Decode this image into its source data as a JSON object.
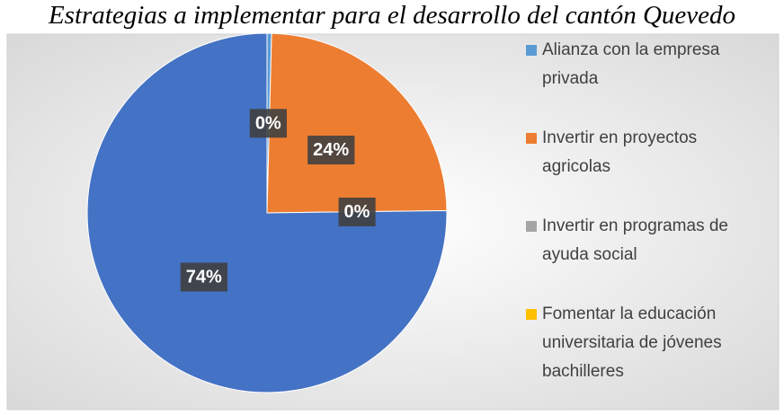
{
  "chart_data": {
    "type": "pie",
    "title": "Estrategias a implementar para el desarrollo del cantón Quevedo",
    "categories": [
      "Alianza con la empresa privada",
      "Invertir en proyectos agricolas",
      "Invertir en programas de ayuda social",
      "Fomentar la educación universitaria de jóvenes bachilleres"
    ],
    "values": [
      0.4,
      24,
      0,
      74
    ],
    "value_labels": [
      "0%",
      "24%",
      "0%",
      "74%"
    ],
    "colors": [
      "#5b9bd5",
      "#ed7d31",
      "#a5a5a5",
      "#4472c4"
    ],
    "legend_colors": [
      "#5b9bd5",
      "#ed7d31",
      "#a5a5a5",
      "#ffc000"
    ]
  }
}
